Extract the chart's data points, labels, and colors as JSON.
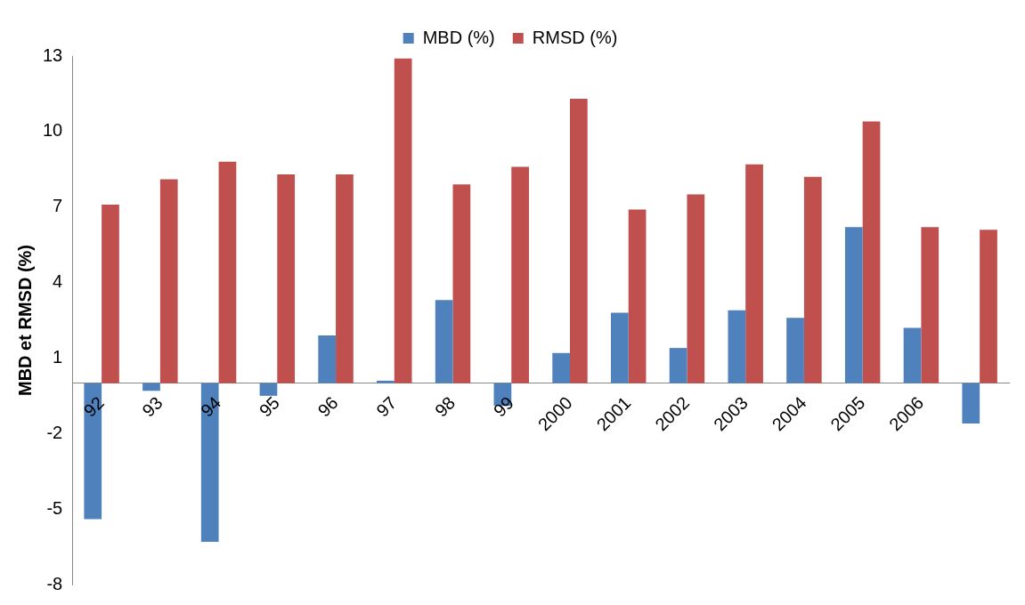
{
  "chart_data": {
    "type": "bar",
    "ylabel": "MBD et RMSD (%)",
    "categories": [
      "92",
      "93",
      "94",
      "95",
      "96",
      "97",
      "98",
      "99",
      "2000",
      "2001",
      "2002",
      "2003",
      "2004",
      "2005",
      "2006",
      null
    ],
    "series": [
      {
        "name": "MBD (%)",
        "color": "#4f81bd",
        "values": [
          -5.4,
          -0.3,
          -6.3,
          -0.5,
          1.9,
          0.1,
          3.3,
          -0.9,
          1.2,
          2.8,
          1.4,
          2.9,
          2.6,
          6.2,
          2.2,
          -1.6
        ]
      },
      {
        "name": "RMSD (%)",
        "color": "#c0504d",
        "values": [
          7.1,
          8.1,
          8.8,
          8.3,
          8.3,
          12.9,
          7.9,
          8.6,
          11.3,
          6.9,
          7.5,
          8.7,
          8.2,
          10.4,
          6.2,
          6.1
        ]
      }
    ],
    "ylim": [
      -8,
      13
    ],
    "yticks": [
      -8,
      -5,
      -2,
      1,
      4,
      7,
      10,
      13
    ],
    "grid": false,
    "legend": "top"
  }
}
